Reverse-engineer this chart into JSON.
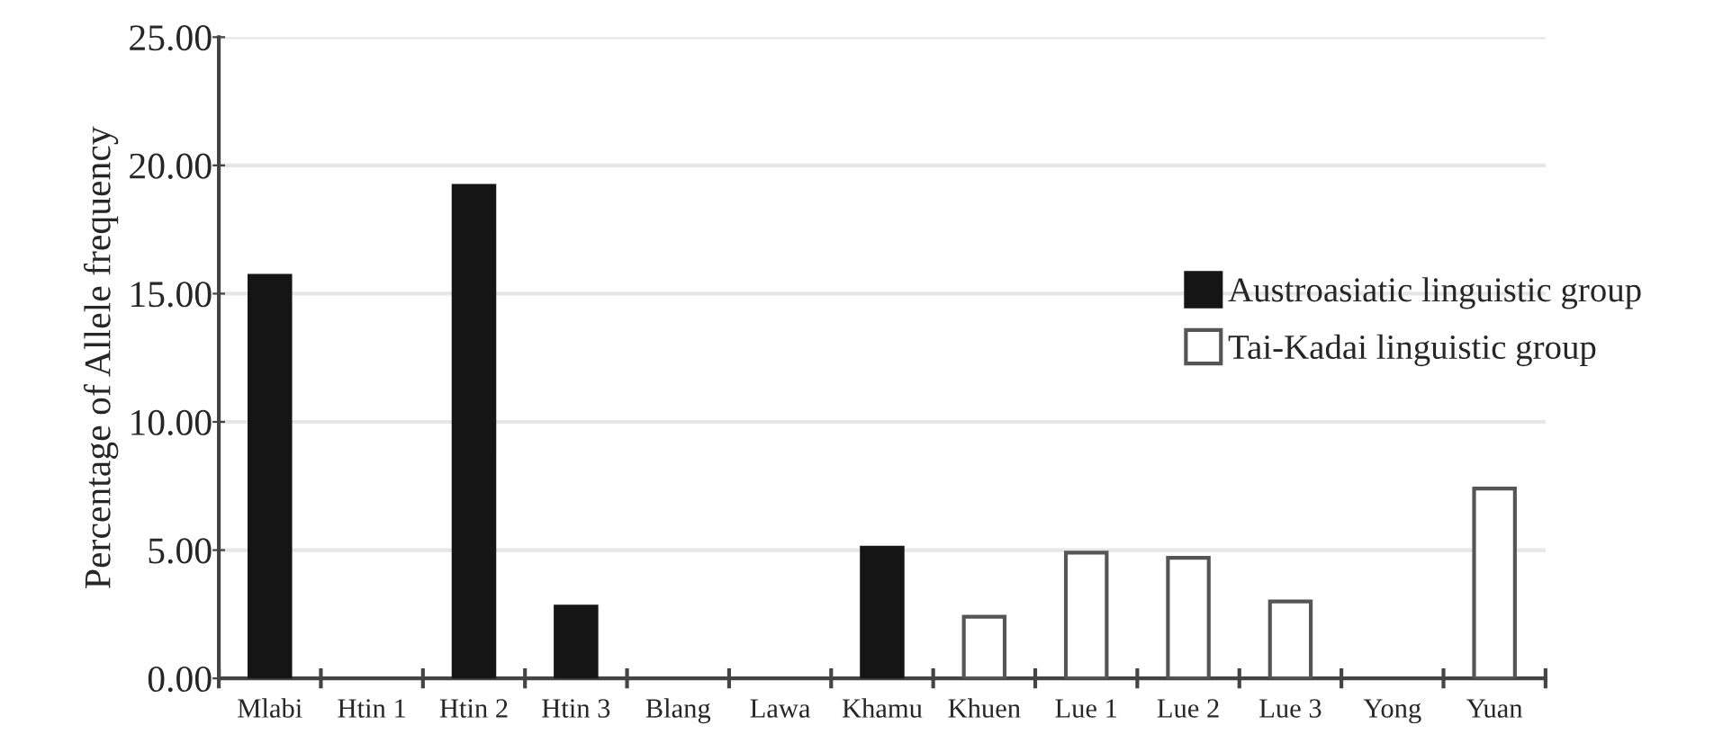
{
  "chart_data": {
    "type": "bar",
    "ylabel": "Percentage of Allele frequency",
    "categories": [
      "Mlabi",
      "Htin 1",
      "Htin 2",
      "Htin 3",
      "Blang",
      "Lawa",
      "Khamu",
      "Khuen",
      "Lue 1",
      "Lue 2",
      "Lue 3",
      "Yong",
      "Yuan"
    ],
    "series": [
      {
        "name": "Austroasiatic linguistic group",
        "color": "#151515",
        "values": [
          15.7,
          0,
          19.2,
          2.8,
          0,
          0,
          5.1,
          null,
          null,
          null,
          null,
          null,
          null
        ]
      },
      {
        "name": "Tai-Kadai linguistic group",
        "color": "#ffffff",
        "values": [
          null,
          null,
          null,
          null,
          null,
          null,
          null,
          2.4,
          4.9,
          4.7,
          3.0,
          0,
          7.4
        ]
      }
    ],
    "ylim": [
      0,
      25
    ],
    "yticks": [
      {
        "value": 0,
        "label": "0.00"
      },
      {
        "value": 5,
        "label": "5.00"
      },
      {
        "value": 10,
        "label": "10.00"
      },
      {
        "value": 15,
        "label": "15.00"
      },
      {
        "value": 20,
        "label": "20.00"
      },
      {
        "value": 25,
        "label": "25.00"
      }
    ],
    "grid": "y",
    "legend": "right"
  }
}
